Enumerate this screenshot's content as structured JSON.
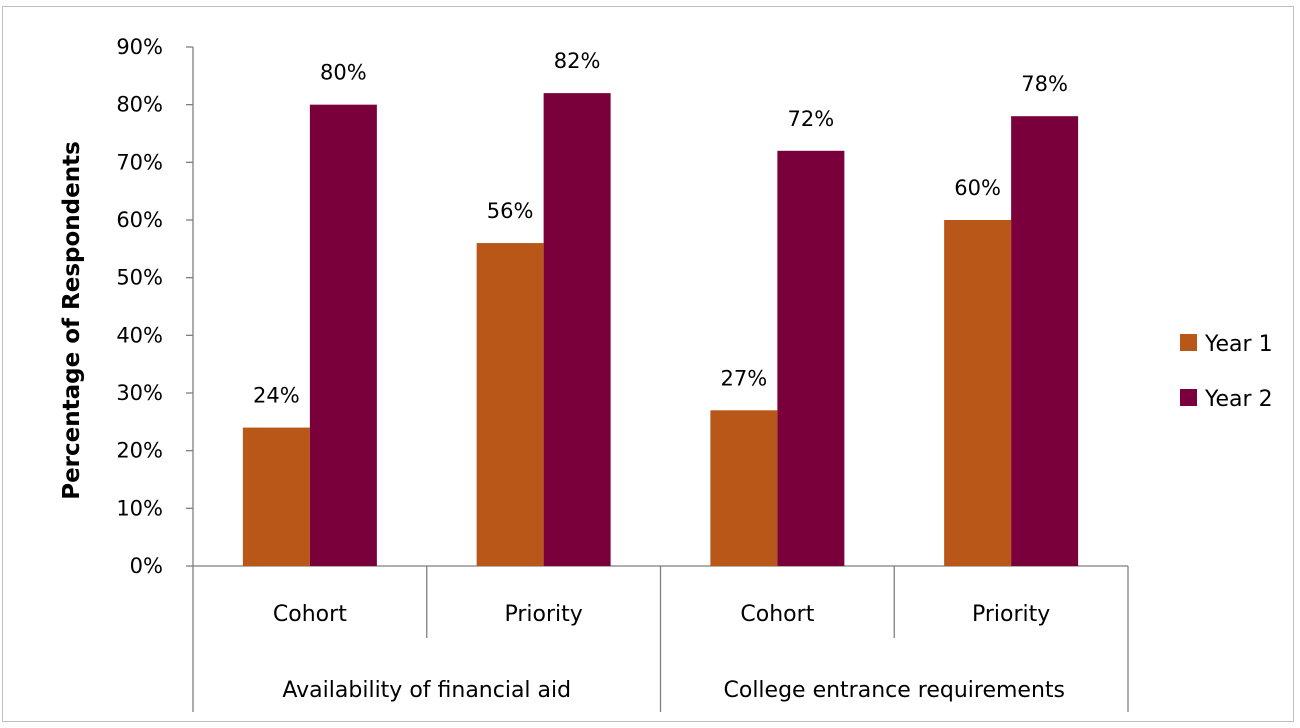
{
  "chart_data": {
    "type": "bar",
    "ylabel": "Percentage of Respondents",
    "ylim": [
      0,
      90
    ],
    "y_tick_step": 10,
    "y_tick_format": "percent",
    "categories": [
      "Cohort",
      "Priority",
      "Cohort",
      "Priority"
    ],
    "groups": [
      {
        "label": "Availability of financial aid",
        "categories": [
          "Cohort",
          "Priority"
        ]
      },
      {
        "label": "College entrance requirements",
        "categories": [
          "Cohort",
          "Priority"
        ]
      }
    ],
    "series": [
      {
        "name": "Year 1",
        "color": "#b85717",
        "values": [
          24,
          56,
          27,
          60
        ]
      },
      {
        "name": "Year 2",
        "color": "#7a003c",
        "values": [
          80,
          82,
          72,
          78
        ]
      }
    ],
    "legend_position": "right",
    "grid": false
  }
}
